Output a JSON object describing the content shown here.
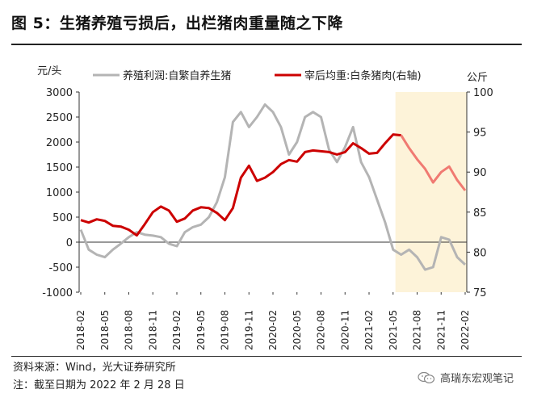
{
  "title": "图 5：生猪养殖亏损后，出栏猪肉重量随之下降",
  "source": "资料来源：Wind，光大证券研究所",
  "footnote": "注：截至日期为 2022 年 2 月 28 日",
  "brand": "高瑞东宏观笔记",
  "brand_icon": "wechat-icon",
  "colors": {
    "gray_series": "#b4b4b4",
    "red_series": "#cc0000",
    "red_forecast": "#f07a72",
    "highlight": "#fdf3d9"
  },
  "chart_data": {
    "type": "line",
    "y_unit_left": "元/头",
    "y_unit_right": "公斤",
    "ylim_left": [
      -1000,
      3000
    ],
    "ylim_right": [
      75,
      100
    ],
    "yticks_left": [
      "3000",
      "2500",
      "2000",
      "1500",
      "1000",
      "500",
      "0",
      "-500",
      "-1000"
    ],
    "yticks_right": [
      "100",
      "95",
      "90",
      "85",
      "80",
      "75"
    ],
    "xticks": [
      "2018-02",
      "2018-05",
      "2018-08",
      "2018-11",
      "2019-02",
      "2019-05",
      "2019-08",
      "2019-11",
      "2020-02",
      "2020-05",
      "2020-08",
      "2020-11",
      "2021-02",
      "2021-05",
      "2021-08",
      "2021-11",
      "2022-02"
    ],
    "x": [
      "2018-02",
      "2018-03",
      "2018-04",
      "2018-05",
      "2018-06",
      "2018-07",
      "2018-08",
      "2018-09",
      "2018-10",
      "2018-11",
      "2018-12",
      "2019-01",
      "2019-02",
      "2019-03",
      "2019-04",
      "2019-05",
      "2019-06",
      "2019-07",
      "2019-08",
      "2019-09",
      "2019-10",
      "2019-11",
      "2019-12",
      "2020-01",
      "2020-02",
      "2020-03",
      "2020-04",
      "2020-05",
      "2020-06",
      "2020-07",
      "2020-08",
      "2020-09",
      "2020-10",
      "2020-11",
      "2020-12",
      "2021-01",
      "2021-02",
      "2021-03",
      "2021-04",
      "2021-05",
      "2021-06",
      "2021-07",
      "2021-08",
      "2021-09",
      "2021-10",
      "2021-11",
      "2021-12",
      "2022-01",
      "2022-02"
    ],
    "highlight_range": [
      "2021-06",
      "2022-02"
    ],
    "series": [
      {
        "name": "养殖利润:自繁自养生猪",
        "axis": "left",
        "values": [
          250,
          -150,
          -250,
          -300,
          -150,
          -30,
          100,
          200,
          150,
          130,
          100,
          -30,
          -80,
          200,
          300,
          350,
          500,
          800,
          1300,
          2400,
          2600,
          2300,
          2500,
          2750,
          2600,
          2300,
          1750,
          2000,
          2500,
          2600,
          2500,
          1850,
          1600,
          1900,
          2300,
          1600,
          1300,
          850,
          400,
          -150,
          -250,
          -150,
          -300,
          -550,
          -500,
          100,
          50,
          -300,
          -450
        ]
      },
      {
        "name": "宰后均重:白条猪肉(右轴)",
        "axis": "right",
        "values": [
          84,
          83.7,
          84.1,
          83.9,
          83.3,
          83.2,
          82.8,
          82.1,
          83.5,
          85.0,
          85.7,
          85.2,
          83.8,
          84.2,
          85.2,
          85.6,
          85.5,
          84.9,
          84.0,
          85.5,
          89.3,
          90.8,
          88.9,
          89.3,
          90.0,
          91.0,
          91.5,
          91.3,
          92.5,
          92.7,
          92.6,
          92.5,
          92.2,
          92.5,
          93.6,
          93.0,
          92.3,
          92.4,
          93.6,
          94.7,
          94.6,
          93.0,
          91.6,
          90.4,
          88.7,
          90.0,
          90.7,
          89.0,
          87.7
        ]
      }
    ]
  }
}
